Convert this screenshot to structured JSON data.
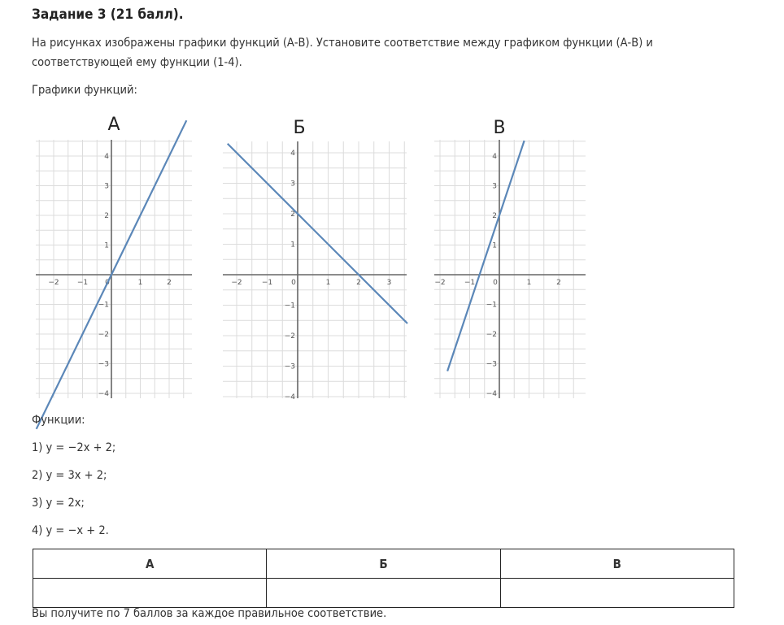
{
  "task": {
    "title": "Задание 3 (21 балл).",
    "text": "На рисунках изображены графики функций (А-В). Установите соответствие между графиком функции (А-В) и соответствующей ему функции (1-4).",
    "graphs_label": "Графики функций:"
  },
  "graphs": [
    {
      "letter": "А",
      "x_ticks": [
        "−2",
        "−1",
        "0",
        "1",
        "2"
      ],
      "y_ticks": [
        "4",
        "3",
        "2",
        "1",
        "−1",
        "−2",
        "−3",
        "−4"
      ],
      "line": {
        "slope": 2,
        "intercept": 0
      }
    },
    {
      "letter": "Б",
      "x_ticks": [
        "−2",
        "−1",
        "0",
        "1",
        "2",
        "3"
      ],
      "y_ticks": [
        "4",
        "3",
        "2",
        "1",
        "−1",
        "−2",
        "−3",
        "−4"
      ],
      "line": {
        "slope": -1,
        "intercept": 2
      }
    },
    {
      "letter": "В",
      "x_ticks": [
        "−2",
        "−1",
        "0",
        "1",
        "2"
      ],
      "y_ticks": [
        "4",
        "3",
        "2",
        "1",
        "−1",
        "−2",
        "−3",
        "−4"
      ],
      "line": {
        "slope": 3,
        "intercept": 2
      }
    }
  ],
  "functions": {
    "label": "Функции:",
    "items": [
      "1) y = −2x + 2;",
      "2) y = 3x + 2;",
      "3) y = 2x;",
      "4) y = −x + 2."
    ]
  },
  "answer_table": {
    "headers": [
      "А",
      "Б",
      "В"
    ],
    "answers": [
      "",
      "",
      ""
    ]
  },
  "footer": "Вы получите по 7 баллов за каждое правильное соответствие.",
  "colors": {
    "line": "#5b87b8",
    "grid": "#dcdcdc",
    "axis": "#666666"
  }
}
